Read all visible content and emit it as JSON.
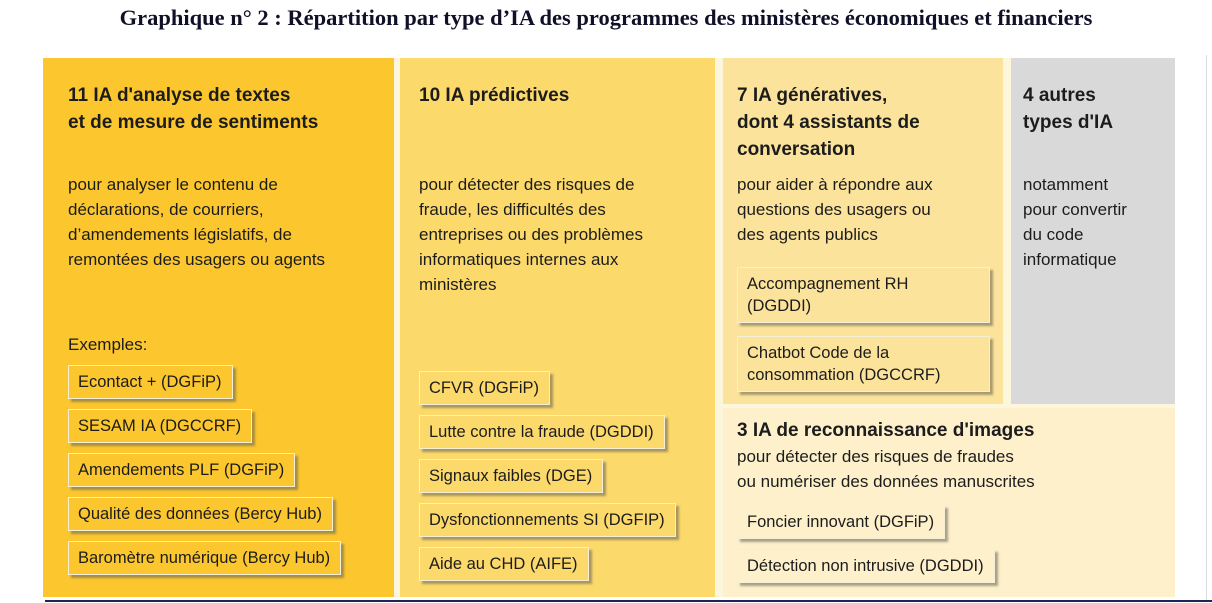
{
  "title": "Graphique n° 2 : Répartition par type d’IA des programmes des ministères économiques et financiers",
  "colors": {
    "col_text_analysis": "#FCC72E",
    "col_predictive": "#FCD96B",
    "col_generative": "#FCE39B",
    "col_other": "#D9D9D9",
    "image_recognition_section": "#FDF0CB",
    "bottom_rule": "#23235A",
    "title_text": "#101028"
  },
  "columns": [
    {
      "heading": "11 IA d'analyse de textes\net de mesure de sentiments",
      "description": "pour analyser le contenu de\ndéclarations, de courriers,\nd’amendements législatifs, de\nremontées des usagers ou agents",
      "examples_label": "Exemples:",
      "items": [
        "Econtact + (DGFiP)",
        "SESAM IA (DGCCRF)",
        "Amendements PLF (DGFiP)",
        "Qualité des données (Bercy Hub)",
        "Baromètre numérique (Bercy Hub)"
      ]
    },
    {
      "heading": "10 IA prédictives",
      "description": "pour détecter des risques de\nfraude, les difficultés des\nentreprises ou des problèmes\ninformatiques internes aux\nministères",
      "items": [
        "CFVR (DGFiP)",
        "Lutte contre la fraude (DGDDI)",
        "Signaux faibles (DGE)",
        "Dysfonctionnements SI (DGFIP)",
        "Aide au CHD (AIFE)"
      ]
    },
    {
      "heading": "7 IA génératives,\ndont 4 assistants de\nconversation",
      "description": "pour aider à répondre aux\nquestions des usagers ou\ndes agents publics",
      "items": [
        "Accompagnement RH\n(DGDDI)",
        "Chatbot Code de la\nconsommation (DGCCRF)"
      ]
    },
    {
      "heading": "4 autres\ntypes d'IA",
      "description": "notamment\npour convertir\ndu code\ninformatique",
      "items": []
    }
  ],
  "bottom_section": {
    "heading": "3 IA de reconnaissance d'images",
    "description": "pour détecter des risques de fraudes\nou numériser des données manuscrites",
    "items": [
      "Foncier innovant (DGFiP)",
      "Détection non intrusive (DGDDI)"
    ]
  }
}
